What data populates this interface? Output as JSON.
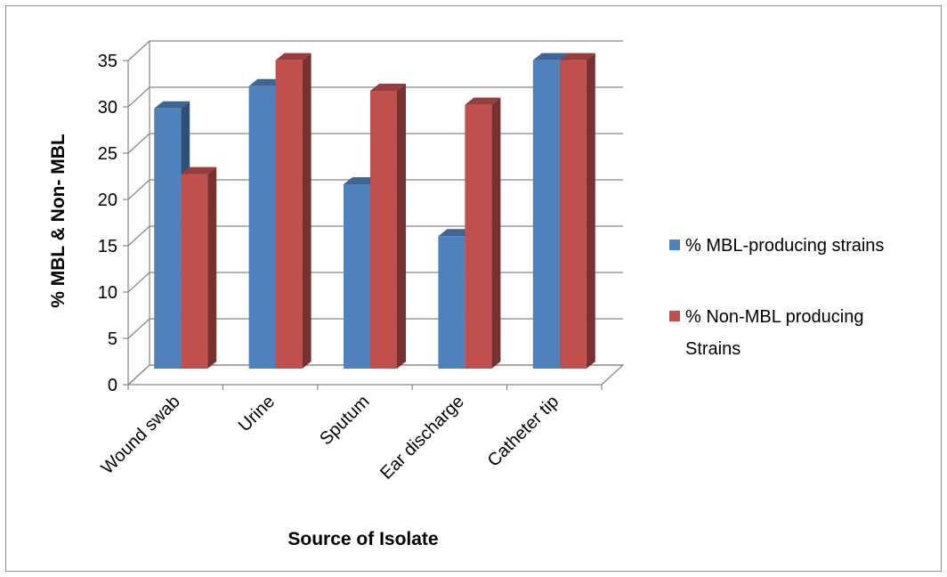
{
  "chart_data": {
    "type": "bar",
    "style": "3d-clustered-column",
    "categories": [
      "Wound swab",
      "Urine",
      "Sputum",
      "Ear discharge",
      "Catheter tip"
    ],
    "series": [
      {
        "name": "% MBL-producing strains",
        "color": "#4F81BD",
        "values": [
          28.1,
          30.5,
          19.9,
          14.3,
          33.3
        ]
      },
      {
        "name": "% Non-MBL producing Strains",
        "color": "#C0504D",
        "values": [
          21.0,
          33.3,
          30.0,
          28.5,
          33.3
        ]
      }
    ],
    "ylim": [
      0,
      35
    ],
    "yticks": [
      "0",
      "5",
      "10",
      "15",
      "20",
      "25",
      "30",
      "35"
    ],
    "xlabel": "Source of Isolate",
    "ylabel": "% MBL & Non- MBL",
    "legend_position": "right",
    "grid": true
  },
  "legend": {
    "items": [
      {
        "lines": [
          "% MBL-producing strains"
        ]
      },
      {
        "lines": [
          "% Non-MBL producing",
          "Strains"
        ]
      }
    ]
  }
}
